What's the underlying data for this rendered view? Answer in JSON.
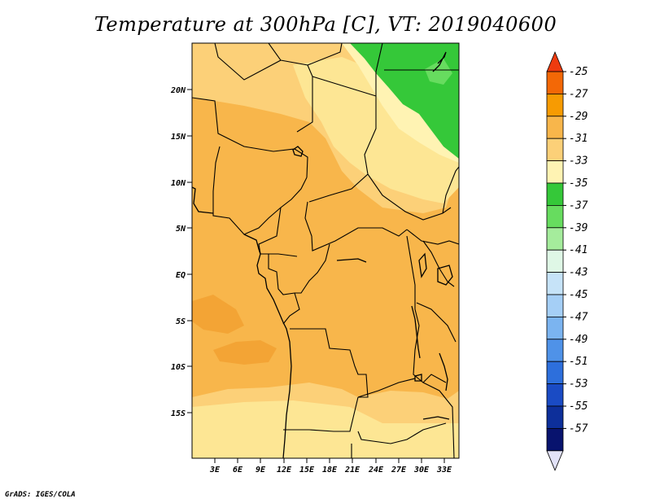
{
  "title": "Temperature at 300hPa [C], VT: 2019040600",
  "credit": "GrADS: IGES/COLA",
  "map": {
    "lat_ticks": [
      "20N",
      "15N",
      "10N",
      "5N",
      "EQ",
      "5S",
      "10S",
      "15S"
    ],
    "lon_ticks": [
      "3E",
      "6E",
      "9E",
      "12E",
      "15E",
      "18E",
      "21E",
      "24E",
      "27E",
      "30E",
      "33E"
    ],
    "colors": {
      "deep_orange": "#f3a435",
      "orange": "#f8b64b",
      "light_orange": "#fcd078",
      "pale_yellow": "#fde694",
      "cream": "#fff3b3",
      "green": "#35c839",
      "light_green": "#67dc5f"
    }
  },
  "colorbar": {
    "labels": [
      "-25",
      "-27",
      "-29",
      "-31",
      "-33",
      "-35",
      "-37",
      "-39",
      "-41",
      "-43",
      "-45",
      "-47",
      "-49",
      "-51",
      "-53",
      "-55",
      "-57"
    ],
    "colors": [
      "#ee3b0f",
      "#f36806",
      "#f79b02",
      "#f8b64b",
      "#fcd078",
      "#fff3b3",
      "#35c839",
      "#67dc5f",
      "#a5ec9c",
      "#dff7e6",
      "#c6e3f8",
      "#a5cff6",
      "#7bb4f0",
      "#4f92e8",
      "#2d6fdc",
      "#1a4bc4",
      "#0d2f9a",
      "#08136e",
      "#e2e2f8"
    ]
  }
}
